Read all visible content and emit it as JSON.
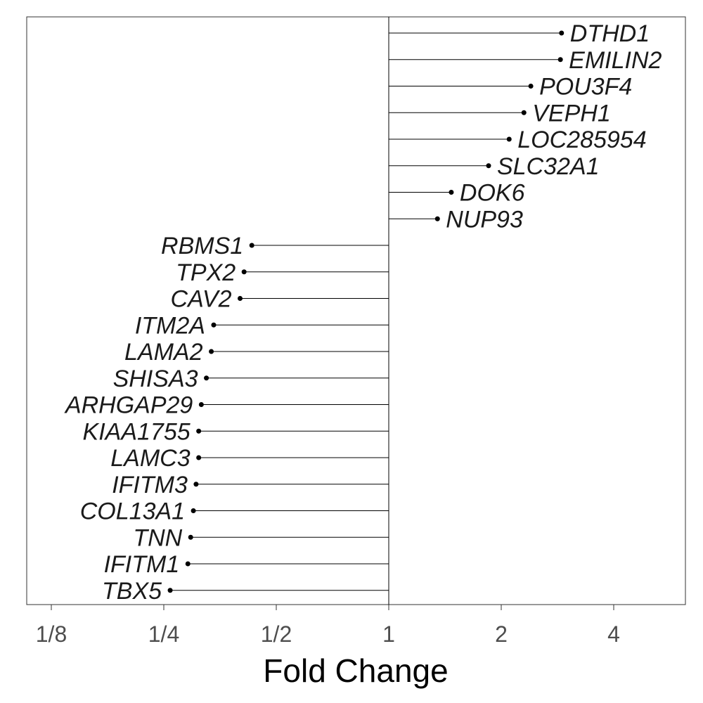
{
  "chart_data": {
    "type": "lollipop",
    "orientation": "horizontal",
    "xlabel": "Fold Change",
    "ylabel": "",
    "title": "",
    "x_scale": "log2",
    "xlim": [
      0.11,
      6.2
    ],
    "x_ticks": [
      {
        "value": 0.125,
        "label": "1/8"
      },
      {
        "value": 0.25,
        "label": "1/4"
      },
      {
        "value": 0.5,
        "label": "1/2"
      },
      {
        "value": 1,
        "label": "1"
      },
      {
        "value": 2,
        "label": "2"
      },
      {
        "value": 4,
        "label": "4"
      }
    ],
    "reference_line": 1,
    "grid": false,
    "categories": [
      "DTHD1",
      "EMILIN2",
      "POU3F4",
      "VEPH1",
      "LOC285954",
      "SLC32A1",
      "DOK6",
      "NUP93",
      "RBMS1",
      "TPX2",
      "CAV2",
      "ITM2A",
      "LAMA2",
      "SHISA3",
      "ARHGAP29",
      "KIAA1755",
      "LAMC3",
      "IFITM3",
      "COL13A1",
      "TNN",
      "IFITM1",
      "TBX5"
    ],
    "values": [
      2.9,
      2.88,
      2.4,
      2.3,
      2.1,
      1.85,
      1.47,
      1.35,
      0.43,
      0.41,
      0.4,
      0.34,
      0.335,
      0.325,
      0.315,
      0.31,
      0.31,
      0.305,
      0.3,
      0.295,
      0.29,
      0.26
    ]
  }
}
